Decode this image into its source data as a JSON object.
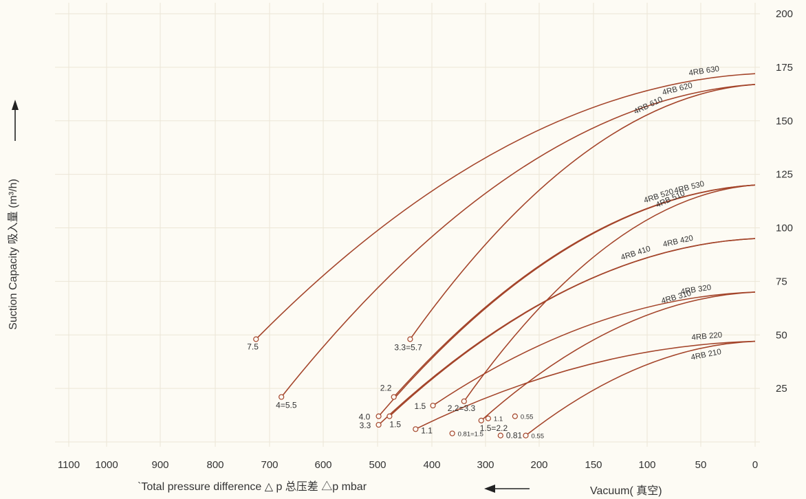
{
  "chart_data": {
    "type": "line",
    "xlabel": "`Total pressure difference △ p 总压差 △p mbar",
    "xlabel_right": "Vacuum( 真空)",
    "ylabel": "Suction Capacity 吸入量 (m³/h)",
    "xlim": [
      1100,
      0
    ],
    "ylim": [
      0,
      200
    ],
    "x_ticks": [
      1100,
      1000,
      900,
      800,
      700,
      600,
      500,
      400,
      300,
      200,
      150,
      100,
      50,
      0
    ],
    "y_ticks": [
      25,
      50,
      75,
      100,
      125,
      150,
      175,
      200
    ],
    "grid": true,
    "series": [
      {
        "name": "4RB 630",
        "start": [
          725,
          48
        ],
        "end": [
          0,
          172
        ],
        "power_label": "7.5"
      },
      {
        "name": "4RB 620",
        "start": [
          678,
          21
        ],
        "end": [
          0,
          167
        ],
        "power_label": "4=5.5"
      },
      {
        "name": "4RB 610",
        "start": [
          440,
          48
        ],
        "end": [
          0,
          167
        ],
        "power_label": "3.3=5.7"
      },
      {
        "name": "4RB 530",
        "start": [
          498,
          12
        ],
        "end": [
          0,
          120
        ],
        "power_label": "4.0"
      },
      {
        "name": "4RB 520",
        "start": [
          470,
          21
        ],
        "end": [
          0,
          120
        ],
        "power_label": "2.2"
      },
      {
        "name": "4RB 510",
        "start": [
          340,
          19
        ],
        "end": [
          0,
          120
        ],
        "power_label": "2.2=3.3"
      },
      {
        "name": "4RB 420",
        "start": [
          498,
          8
        ],
        "end": [
          0,
          95
        ],
        "power_label": "3.3"
      },
      {
        "name": "4RB 410",
        "start": [
          478,
          12
        ],
        "end": [
          0,
          95
        ],
        "power_label": "1.5"
      },
      {
        "name": "4RB 320",
        "start": [
          398,
          17
        ],
        "end": [
          0,
          70
        ],
        "power_label": "1.5"
      },
      {
        "name": "4RB 310",
        "start": [
          308,
          10
        ],
        "end": [
          0,
          70
        ],
        "power_label": "1.5=2.2"
      },
      {
        "name": "4RB 220",
        "start": [
          430,
          6
        ],
        "end": [
          0,
          47
        ],
        "power_label": "1.1"
      },
      {
        "name": "4RB 210",
        "start": [
          225,
          3
        ],
        "end": [
          0,
          47
        ],
        "power_label": "0.55"
      }
    ],
    "extra_points": [
      {
        "x": 295,
        "y": 11,
        "power_label": "1.1"
      },
      {
        "x": 245,
        "y": 12,
        "power_label": "0.55"
      },
      {
        "x": 362,
        "y": 4,
        "power_label": "0.81=1.5"
      },
      {
        "x": 272,
        "y": 3,
        "power_label": "0.81"
      }
    ]
  }
}
